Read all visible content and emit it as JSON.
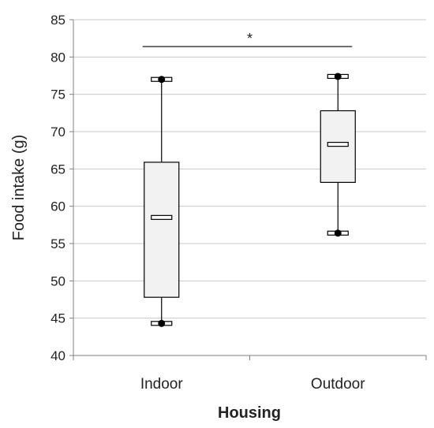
{
  "chart_data": {
    "type": "box",
    "title": "",
    "xlabel": "Housing",
    "ylabel": "Food intake (g)",
    "ylim": [
      40,
      85
    ],
    "yticks": [
      40,
      45,
      50,
      55,
      60,
      65,
      70,
      75,
      80,
      85
    ],
    "grid": true,
    "categories": [
      "Indoor",
      "Outdoor"
    ],
    "boxes": [
      {
        "category": "Indoor",
        "min": 44.3,
        "q1": 47.8,
        "median": 58.5,
        "q3": 65.9,
        "max": 77.0
      },
      {
        "category": "Outdoor",
        "min": 56.4,
        "q1": 63.2,
        "median": 68.3,
        "q3": 72.8,
        "max": 77.4
      }
    ],
    "significance": {
      "label": "*",
      "between": [
        "Indoor",
        "Outdoor"
      ],
      "y": 81.4
    },
    "colors": {
      "box_fill": "#f2f2f2",
      "line": "#000000",
      "grid": "#c8c8c8",
      "text": "#222222"
    }
  }
}
